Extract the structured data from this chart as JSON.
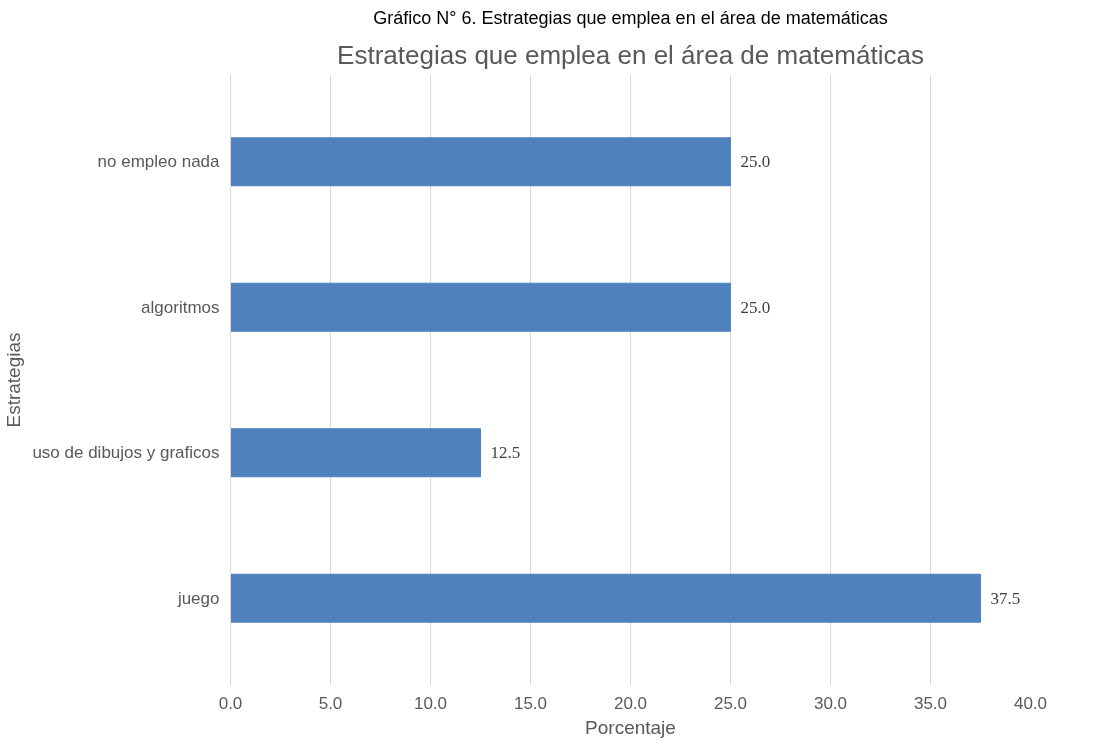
{
  "chart_data": {
    "type": "bar",
    "orientation": "horizontal",
    "title": "Estrategias que emplea en el área de matemáticas",
    "annotations": [
      "Gráfico N° 6. Estrategias que emplea en el área de matemáticas"
    ],
    "xlabel": "Porcentaje",
    "ylabel": "Estrategias",
    "categories": [
      "no empleo nada",
      "algoritmos",
      "uso de dibujos y graficos",
      "juego"
    ],
    "values": [
      25.0,
      25.0,
      12.5,
      37.5
    ],
    "color": "#4f81bd",
    "xlim": [
      0,
      40
    ],
    "xticks": [
      {
        "value": 0,
        "label": "0.0"
      },
      {
        "value": 5,
        "label": "5.0"
      },
      {
        "value": 10,
        "label": "10.0"
      },
      {
        "value": 15,
        "label": "15.0"
      },
      {
        "value": 20,
        "label": "20.0"
      },
      {
        "value": 25,
        "label": "25.0"
      },
      {
        "value": 30,
        "label": "30.0"
      },
      {
        "value": 35,
        "label": "35.0"
      },
      {
        "value": 40,
        "label": "40.0"
      }
    ],
    "value_labels": [
      "25.0",
      "25.0",
      "12.5",
      "37.5"
    ],
    "grid": "x"
  }
}
